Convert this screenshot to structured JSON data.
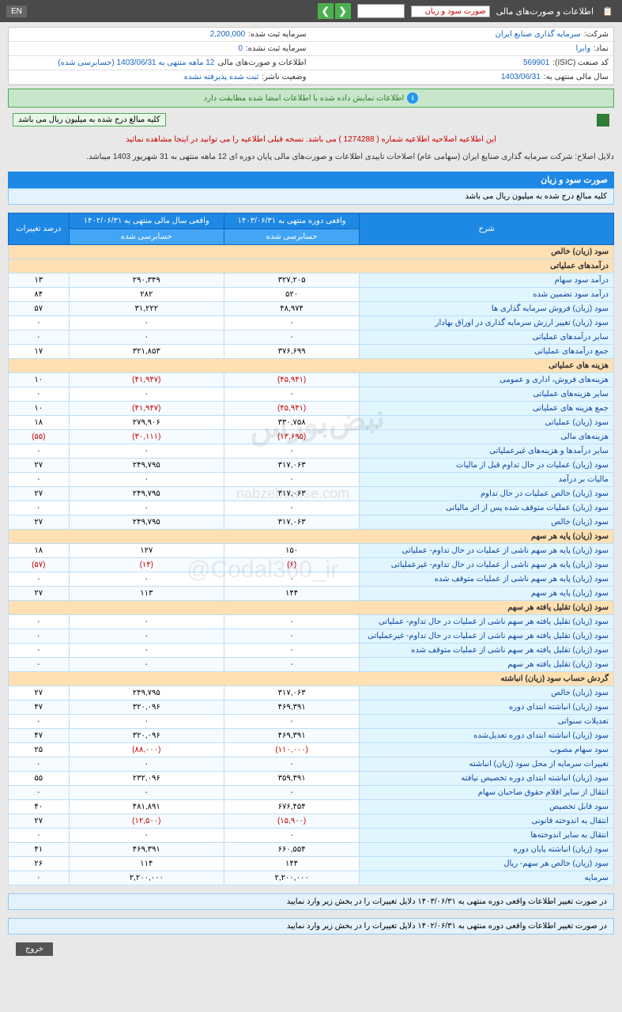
{
  "header": {
    "title": "اطلاعات و صورت‌های مالی",
    "nav_label": "صورت سود و زیان",
    "en": "EN"
  },
  "info": {
    "r1c1_label": "شرکت:",
    "r1c1_value": "سرمایه گذاری صنایع ایران",
    "r1c2_label": "سرمایه ثبت شده:",
    "r1c2_value": "2,200,000",
    "r2c1_label": "نماد:",
    "r2c1_value": "وایرا",
    "r2c2_label": "سرمایه ثبت نشده:",
    "r2c2_value": "0",
    "r3c1_label": "کد صنعت (ISIC):",
    "r3c1_value": "569901",
    "r3c2_label": "اطلاعات و صورت‌های مالی",
    "r3c2_value": "12 ماهه منتهی به 1403/06/31 (حسابرسی شده)",
    "r4c1_label": "سال مالی منتهی به:",
    "r4c1_value": "1403/06/31",
    "r4c2_label": "وضعیت ناشر:",
    "r4c2_value": "ثبت شده پذیرفته نشده"
  },
  "alert": "اطلاعات نمایش داده شده با اطلاعات امضا شده مطابقت دارد",
  "note_text": "کلیه مبالغ درج شده به میلیون ریال می باشد",
  "red_notice": "این اطلاعیه اصلاحیه اطلاعیه شماره ( 1274288 ) می باشد. نسخه قبلی اطلاعیه را می توانید در اینجا مشاهده نمائید",
  "sub_notice": "دلایل اصلاح: شرکت سرمایه گذاری صنایع ایران (سهامی عام) اصلاحات تاییدی اطلاعات و صورت‌های مالی پایان دوره ای 12 ماهه منتهی به 31 شهریور 1403 میباشد.",
  "section_title": "صورت سود و زیان",
  "section_sub": "کلیه مبالغ درج شده به میلیون ریال می باشد",
  "cols": {
    "c1": "شرح",
    "c2": "واقعی دوره منتهی به ۱۴۰۳/۰۶/۳۱",
    "c3": "واقعی سال مالی منتهی به ۱۴۰۲/۰۶/۳۱",
    "c4": "درصد تغییرات",
    "sub2": "حسابرسی شده",
    "sub3": "حسابرسی شده"
  },
  "rows": [
    {
      "type": "group",
      "label": "سود (زیان) خالص"
    },
    {
      "type": "group",
      "label": "درآمدهای عملیاتی"
    },
    {
      "type": "data",
      "label": "درآمد سود سهام",
      "v1": "۳۲۷,۲۰۵",
      "v2": "۲۹۰,۳۴۹",
      "v3": "۱۳"
    },
    {
      "type": "data",
      "label": "درآمد سود تضمین شده",
      "v1": "۵۲۰",
      "v2": "۲۸۲",
      "v3": "۸۴"
    },
    {
      "type": "data",
      "label": "سود (زیان) فروش سرمایه گذاری ها",
      "v1": "۴۸,۹۷۴",
      "v2": "۳۱,۲۲۲",
      "v3": "۵۷"
    },
    {
      "type": "data",
      "label": "سود (زیان) تغییر ارزش سرمایه گذاری در اوراق بهادار",
      "v1": "۰",
      "v2": "۰",
      "v3": "۰"
    },
    {
      "type": "data",
      "label": "سایر درآمدهای عملیاتی",
      "v1": "۰",
      "v2": "۰",
      "v3": "۰"
    },
    {
      "type": "data",
      "label": "جمع درآمدهای عملیاتی",
      "v1": "۳۷۶,۶۹۹",
      "v2": "۳۲۱,۸۵۳",
      "v3": "۱۷"
    },
    {
      "type": "group",
      "label": "هزینه های عملیاتی"
    },
    {
      "type": "data",
      "label": "هزینه‌های فروش، اداری و عمومی",
      "v1": "(۴۵,۹۴۱)",
      "v2": "(۴۱,۹۴۷)",
      "v3": "۱۰",
      "neg1": true,
      "neg2": true
    },
    {
      "type": "data",
      "label": "سایر هزینه‌های عملیاتی",
      "v1": "۰",
      "v2": "۰",
      "v3": "۰"
    },
    {
      "type": "data",
      "label": "جمع هزینه های عملیاتی",
      "v1": "(۴۵,۹۴۱)",
      "v2": "(۴۱,۹۴۷)",
      "v3": "۱۰",
      "neg1": true,
      "neg2": true
    },
    {
      "type": "data",
      "label": "سود (زیان) عملیاتی",
      "v1": "۳۳۰,۷۵۸",
      "v2": "۲۷۹,۹۰۶",
      "v3": "۱۸"
    },
    {
      "type": "data",
      "label": "هزینه‌های مالی",
      "v1": "(۱۳,۶۹۵)",
      "v2": "(۳۰,۱۱۱)",
      "v3": "(۵۵)",
      "neg1": true,
      "neg2": true,
      "neg3": true
    },
    {
      "type": "data",
      "label": "سایر درآمدها و هزینه‌های غیرعملیاتی",
      "v1": "۰",
      "v2": "۰",
      "v3": "۰"
    },
    {
      "type": "data",
      "label": "سود (زیان) عملیات در حال تداوم قبل از مالیات",
      "v1": "۳۱۷,۰۶۳",
      "v2": "۲۴۹,۷۹۵",
      "v3": "۲۷"
    },
    {
      "type": "data",
      "label": "مالیات بر درآمد",
      "v1": "۰",
      "v2": "۰",
      "v3": "۰"
    },
    {
      "type": "data",
      "label": "سود (زیان) خالص عملیات در حال تداوم",
      "v1": "۳۱۷,۰۶۳",
      "v2": "۲۴۹,۷۹۵",
      "v3": "۲۷"
    },
    {
      "type": "data",
      "label": "سود (زیان) عملیات متوقف شده پس از اثر مالیاتی",
      "v1": "۰",
      "v2": "۰",
      "v3": "۰"
    },
    {
      "type": "data",
      "label": "سود (زیان) خالص",
      "v1": "۳۱۷,۰۶۳",
      "v2": "۲۴۹,۷۹۵",
      "v3": "۲۷"
    },
    {
      "type": "group",
      "label": "سود (زیان) پایه هر سهم"
    },
    {
      "type": "data",
      "label": "سود (زیان) پایه هر سهم ناشی از عملیات در حال تداوم- عملیاتی",
      "v1": "۱۵۰",
      "v2": "۱۲۷",
      "v3": "۱۸"
    },
    {
      "type": "data",
      "label": "سود (زیان) پایه هر سهم ناشی از عملیات در حال تداوم- غیرعملیاتی",
      "v1": "(۶)",
      "v2": "(۱۴)",
      "v3": "(۵۷)",
      "neg1": true,
      "neg2": true,
      "neg3": true
    },
    {
      "type": "data",
      "label": "سود (زیان) پایه هر سهم ناشی از عملیات متوقف شده",
      "v1": "۰",
      "v2": "۰",
      "v3": "۰"
    },
    {
      "type": "data",
      "label": "سود (زیان) پایه هر سهم",
      "v1": "۱۴۴",
      "v2": "۱۱۳",
      "v3": "۲۷"
    },
    {
      "type": "group",
      "label": "سود (زیان) تقلیل یافته هر سهم"
    },
    {
      "type": "data",
      "label": "سود (زیان) تقلیل یافته هر سهم ناشی از عملیات در حال تداوم- عملیاتی",
      "v1": "۰",
      "v2": "۰",
      "v3": "۰"
    },
    {
      "type": "data",
      "label": "سود (زیان) تقلیل یافته هر سهم ناشی از عملیات در حال تداوم- غیرعملیاتی",
      "v1": "۰",
      "v2": "۰",
      "v3": "۰"
    },
    {
      "type": "data",
      "label": "سود (زیان) تقلیل یافته هر سهم ناشی از عملیات متوقف شده",
      "v1": "۰",
      "v2": "۰",
      "v3": "۰"
    },
    {
      "type": "data",
      "label": "سود (زیان) تقلیل یافته هر سهم",
      "v1": "۰",
      "v2": "۰",
      "v3": "۰"
    },
    {
      "type": "group",
      "label": "گردش حساب سود (زیان) انباشته"
    },
    {
      "type": "data",
      "label": "سود (زیان) خالص",
      "v1": "۳۱۷,۰۶۳",
      "v2": "۲۴۹,۷۹۵",
      "v3": "۲۷"
    },
    {
      "type": "data",
      "label": "سود (زیان) انباشته ابتدای دوره",
      "v1": "۴۶۹,۳۹۱",
      "v2": "۳۲۰,۰۹۶",
      "v3": "۴۷"
    },
    {
      "type": "data",
      "label": "تعدیلات سنواتی",
      "v1": "۰",
      "v2": "۰",
      "v3": "۰"
    },
    {
      "type": "data",
      "label": "سود (زیان) انباشته ابتدای دوره تعدیل‌شده",
      "v1": "۴۶۹,۳۹۱",
      "v2": "۳۲۰,۰۹۶",
      "v3": "۴۷"
    },
    {
      "type": "data",
      "label": "سود سهام مصوب",
      "v1": "(۱۱۰,۰۰۰)",
      "v2": "(۸۸,۰۰۰)",
      "v3": "۲۵",
      "neg1": true,
      "neg2": true
    },
    {
      "type": "data",
      "label": "تغییرات سرمایه از محل سود (زیان) انباشته",
      "v1": "۰",
      "v2": "۰",
      "v3": "۰"
    },
    {
      "type": "data",
      "label": "سود (زیان) انباشته ابتدای دوره تخصیص نیافته",
      "v1": "۳۵۹,۳۹۱",
      "v2": "۲۳۲,۰۹۶",
      "v3": "۵۵"
    },
    {
      "type": "data",
      "label": "انتقال از سایر اقلام حقوق صاحبان سهام",
      "v1": "۰",
      "v2": "۰",
      "v3": "۰"
    },
    {
      "type": "data",
      "label": "سود قابل تخصیص",
      "v1": "۶۷۶,۴۵۴",
      "v2": "۴۸۱,۸۹۱",
      "v3": "۴۰"
    },
    {
      "type": "data",
      "label": "انتقال به اندوخته قانونی",
      "v1": "(۱۵,۹۰۰)",
      "v2": "(۱۲,۵۰۰)",
      "v3": "۲۷",
      "neg1": true,
      "neg2": true
    },
    {
      "type": "data",
      "label": "انتقال به سایر اندوخته‌ها",
      "v1": "۰",
      "v2": "۰",
      "v3": "۰"
    },
    {
      "type": "data",
      "label": "سود (زیان) انباشته پایان دوره",
      "v1": "۶۶۰,۵۵۴",
      "v2": "۴۶۹,۳۹۱",
      "v3": "۴۱"
    },
    {
      "type": "data",
      "label": "سود (زیان) خالص هر سهم- ریال",
      "v1": "۱۴۴",
      "v2": "۱۱۴",
      "v3": "۲۶"
    },
    {
      "type": "data",
      "label": "سرمایه",
      "v1": "۲,۲۰۰,۰۰۰",
      "v2": "۲,۲۰۰,۰۰۰",
      "v3": "۰"
    }
  ],
  "footer1": "در صورت تغییر اطلاعات واقعی دوره منتهی به ۱۴۰۳/۰۶/۳۱ دلایل تغییرات را در بخش زیر وارد نمایید",
  "footer2": "در صورت تغییر اطلاعات واقعی دوره منتهی به ۱۴۰۲/۰۶/۳۱ دلایل تغییرات را در بخش زیر وارد نمایید",
  "exit": "خروج"
}
